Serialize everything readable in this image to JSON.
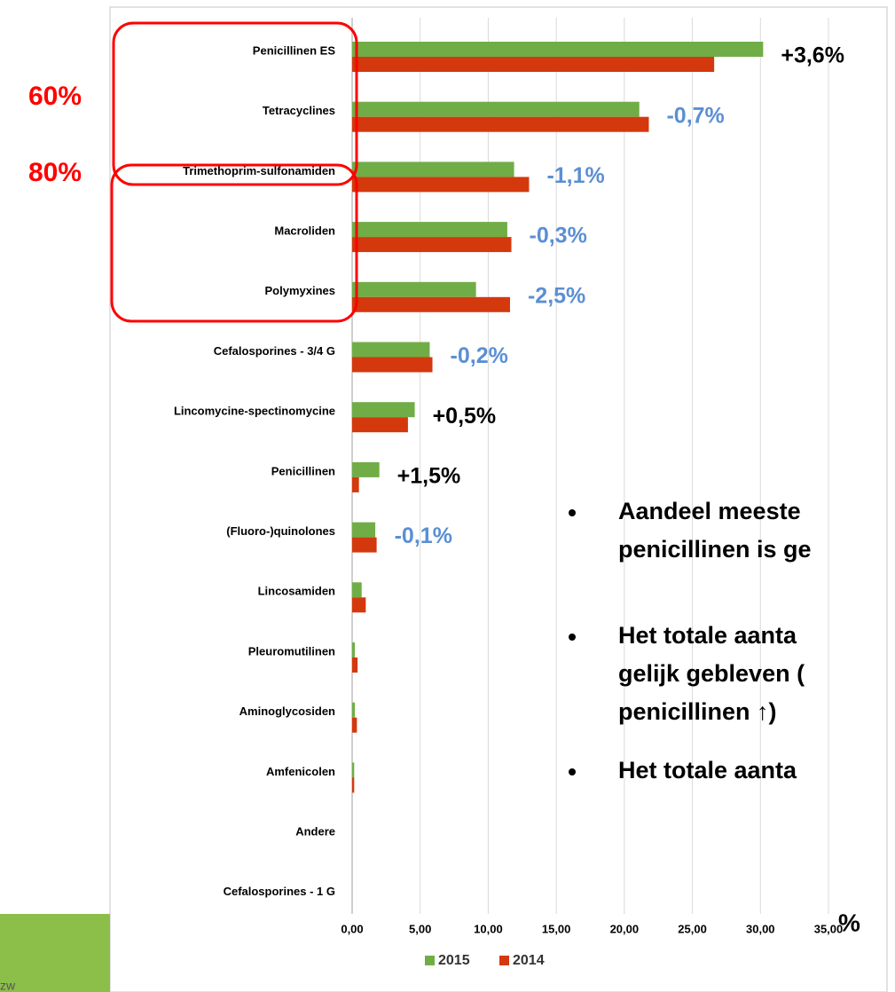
{
  "chart_data": {
    "type": "hbar",
    "categories": [
      "Penicillinen ES",
      "Tetracyclines",
      "Trimethoprim-sulfonamiden",
      "Macroliden",
      "Polymyxines",
      "Cefalosporines - 3/4 G",
      "Lincomycine-spectinomycine",
      "Penicillinen",
      "(Fluoro-)quinolones",
      "Lincosamiden",
      "Pleuromutilinen",
      "Aminoglycosiden",
      "Amfenicolen",
      "Andere",
      "Cefalosporines - 1 G"
    ],
    "series": [
      {
        "name": "2015",
        "color": "#70ad47",
        "values": [
          30.2,
          21.1,
          11.9,
          11.4,
          9.1,
          5.7,
          4.6,
          2.0,
          1.7,
          0.7,
          0.2,
          0.2,
          0.15,
          0,
          0
        ]
      },
      {
        "name": "2014",
        "color": "#d4380d",
        "values": [
          26.6,
          21.8,
          13.0,
          11.7,
          11.6,
          5.9,
          4.1,
          0.5,
          1.8,
          1.0,
          0.4,
          0.35,
          0.15,
          0,
          0
        ]
      }
    ],
    "annotations": [
      {
        "text": "+3,6%",
        "color": "#000000"
      },
      {
        "text": "-0,7%",
        "color": "#5b8fd4"
      },
      {
        "text": "-1,1%",
        "color": "#5b8fd4"
      },
      {
        "text": "-0,3%",
        "color": "#5b8fd4"
      },
      {
        "text": "-2,5%",
        "color": "#5b8fd4"
      },
      {
        "text": "-0,2%",
        "color": "#5b8fd4"
      },
      {
        "text": "+0,5%",
        "color": "#000000"
      },
      {
        "text": "+1,5%",
        "color": "#000000"
      },
      {
        "text": "-0,1%",
        "color": "#5b8fd4"
      }
    ],
    "xlim": [
      0,
      35
    ],
    "xticks": [
      {
        "value": 0,
        "label": "0,00"
      },
      {
        "value": 5,
        "label": "5,00"
      },
      {
        "value": 10,
        "label": "10,00"
      },
      {
        "value": 15,
        "label": "15,00"
      },
      {
        "value": 20,
        "label": "20,00"
      },
      {
        "value": 25,
        "label": "25,00"
      },
      {
        "value": 30,
        "label": "30,00"
      },
      {
        "value": 35,
        "label": "35,00"
      }
    ],
    "x_unit": "%",
    "grid": true,
    "legend": "bottom"
  },
  "side_labels": [
    "60%",
    "80%"
  ],
  "bullets": [
    [
      "Aandeel meeste",
      "penicillinen is ge"
    ],
    [
      "Het totale aanta",
      "gelijk gebleven (",
      "penicillinen ↑)"
    ],
    [
      "Het totale aanta"
    ]
  ],
  "footer_fragment": "zw"
}
